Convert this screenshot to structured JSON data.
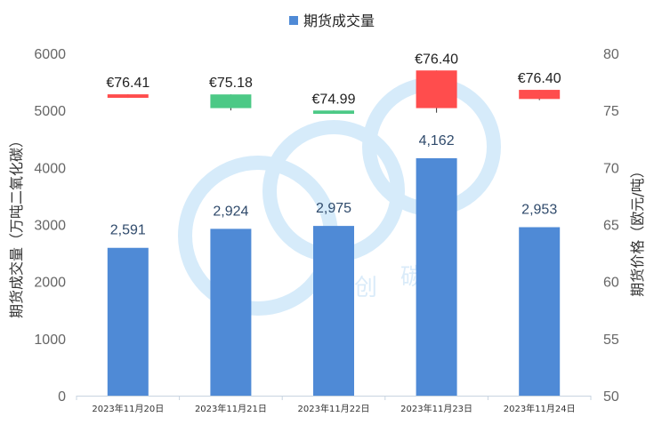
{
  "legend": {
    "label": "期货成交量",
    "color": "#4f8ad6"
  },
  "chart_data": {
    "type": "bar",
    "categories": [
      "2023年11月20日",
      "2023年11月21日",
      "2023年11月22日",
      "2023年11月23日",
      "2023年11月24日"
    ],
    "series": [
      {
        "name": "期货成交量",
        "axis": "left",
        "type": "bar",
        "color": "#4f8ad6",
        "values": [
          2591,
          2924,
          2975,
          4162,
          2953
        ],
        "labels": [
          "2,591",
          "2,924",
          "2,975",
          "4,162",
          "2,953"
        ]
      }
    ],
    "price_candles": {
      "axis": "right",
      "labels": [
        "€76.41",
        "€75.18",
        "€74.99",
        "€76.40",
        "€76.40"
      ],
      "open": [
        76.41,
        75.2,
        74.99,
        75.2,
        76.8
      ],
      "close": [
        76.1,
        76.4,
        74.7,
        78.5,
        76.0
      ],
      "high": [
        76.41,
        76.4,
        74.99,
        78.5,
        76.8
      ],
      "low": [
        76.1,
        75.0,
        74.7,
        74.8,
        75.9
      ],
      "colors": [
        "#ff4d4d",
        "#4cc986",
        "#4cc986",
        "#ff4d4d",
        "#ff4d4d"
      ]
    },
    "y_left": {
      "label": "期货成交量（万吨二氧化碳）",
      "ylim": [
        0,
        6000
      ],
      "ticks": [
        0,
        1000,
        2000,
        3000,
        4000,
        5000,
        6000
      ]
    },
    "y_right": {
      "label": "期货价格（欧元/吨）",
      "ylim": [
        50,
        80
      ],
      "ticks": [
        50,
        55,
        60,
        65,
        70,
        75,
        80
      ]
    },
    "grid": false,
    "legend_position": "top-center"
  },
  "watermark": {
    "letters": [
      "创",
      "碳"
    ]
  }
}
